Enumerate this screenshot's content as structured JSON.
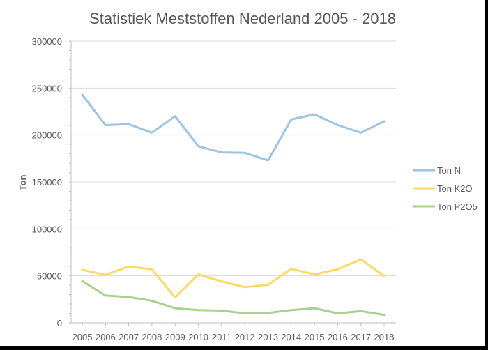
{
  "chart_data": {
    "type": "line",
    "title": "Statistiek Meststoffen Nederland 2005 - 2018",
    "xlabel": "",
    "ylabel": "Ton",
    "ylim": [
      0,
      300000
    ],
    "yticks": [
      0,
      50000,
      100000,
      150000,
      200000,
      250000,
      300000
    ],
    "ytick_labels": [
      "0",
      "50000",
      "100000",
      "150000",
      "200000",
      "250000",
      "300000"
    ],
    "y_minor_step": 10000,
    "grid": true,
    "legend_position": "right",
    "categories": [
      "2005",
      "2006",
      "2007",
      "2008",
      "2009",
      "2010",
      "2011",
      "2012",
      "2013",
      "2014",
      "2015",
      "2016",
      "2017",
      "2018"
    ],
    "series": [
      {
        "name": "Ton N",
        "color": "#9DC3E6",
        "values": [
          243000,
          210500,
          211500,
          202500,
          220000,
          188000,
          181500,
          181000,
          173000,
          216500,
          222000,
          210500,
          202500,
          214500
        ]
      },
      {
        "name": "Ton K2O",
        "color": "#FFD966",
        "values": [
          56500,
          51000,
          60000,
          57000,
          27000,
          51500,
          44000,
          38000,
          40500,
          57500,
          51500,
          57000,
          67500,
          50000
        ]
      },
      {
        "name": "Ton P2O5",
        "color": "#A9D18E",
        "values": [
          44500,
          29000,
          27500,
          23500,
          15500,
          13500,
          13000,
          10000,
          10500,
          13500,
          15500,
          10000,
          12500,
          8500
        ]
      }
    ]
  }
}
